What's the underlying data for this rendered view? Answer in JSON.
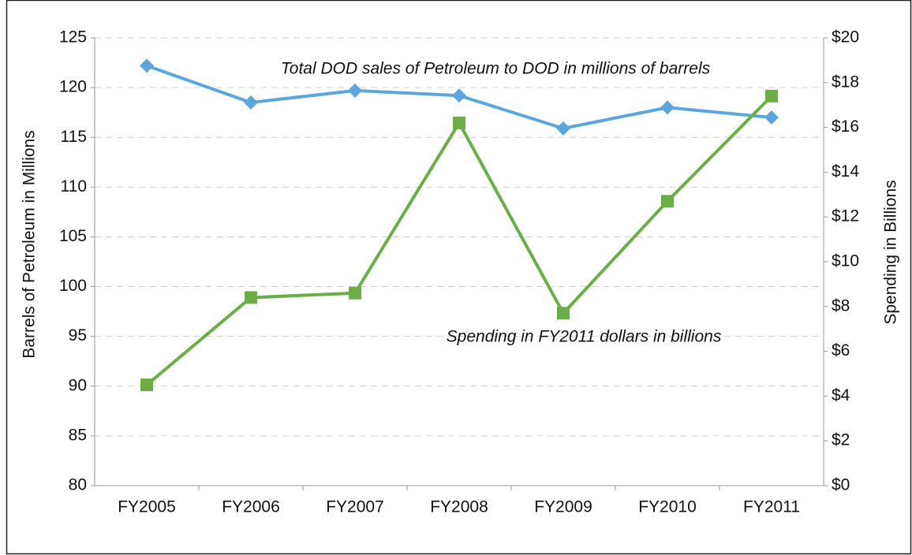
{
  "chart_data": {
    "type": "line",
    "categories": [
      "FY2005",
      "FY2006",
      "FY2007",
      "FY2008",
      "FY2009",
      "FY2010",
      "FY2011"
    ],
    "series": [
      {
        "name": "Total DOD sales of Petroleum to DOD in millions of barrels",
        "color": "#5ba6dd",
        "marker": "diamond",
        "values": [
          122.2,
          118.5,
          119.7,
          119.2,
          115.9,
          118.0,
          117.0
        ]
      },
      {
        "name": "Spending in FY2011 dollars in billions",
        "color": "#6aae45",
        "marker": "square",
        "axis": "y2",
        "values": [
          4.5,
          8.4,
          8.6,
          16.2,
          7.7,
          12.7,
          17.4
        ]
      }
    ],
    "ylabel": "Barrels of Petroleum in Millions",
    "y2label": "Spending in Billions",
    "ylim": [
      80,
      125
    ],
    "yticks": [
      80,
      85,
      90,
      95,
      100,
      105,
      110,
      115,
      120,
      125
    ],
    "y2lim": [
      0,
      20
    ],
    "y2ticks": [
      {
        "value": 0,
        "label": "$0"
      },
      {
        "value": 2,
        "label": "$2"
      },
      {
        "value": 4,
        "label": "$4"
      },
      {
        "value": 6,
        "label": "$6"
      },
      {
        "value": 8,
        "label": "$8"
      },
      {
        "value": 10,
        "label": "$10"
      },
      {
        "value": 12,
        "label": "$12"
      },
      {
        "value": 14,
        "label": "$14"
      },
      {
        "value": 16,
        "label": "$16"
      },
      {
        "value": 18,
        "label": "$18"
      },
      {
        "value": 20,
        "label": "$20"
      }
    ],
    "grid": true
  }
}
